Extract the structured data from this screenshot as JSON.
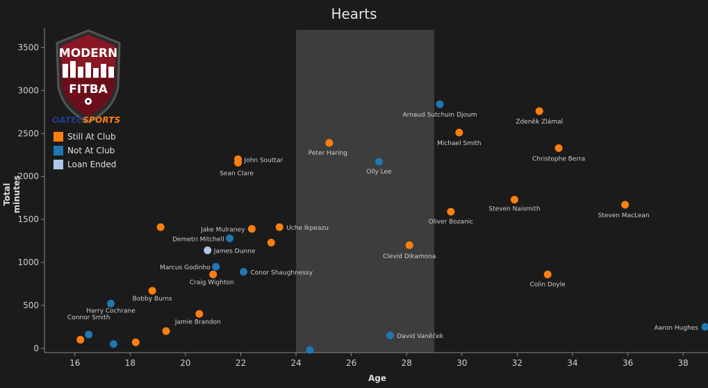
{
  "chart_data": {
    "type": "scatter",
    "title": "Hearts",
    "xlabel": "Age",
    "ylabel": "Total minutes",
    "xlim": [
      14.9,
      38.9
    ],
    "ylim": [
      -50,
      3730
    ],
    "xticks": [
      16,
      18,
      20,
      22,
      24,
      26,
      28,
      30,
      32,
      34,
      36,
      38
    ],
    "yticks": [
      0,
      500,
      1000,
      1500,
      2000,
      2500,
      3000,
      3500
    ],
    "highlight_band": [
      24,
      29
    ],
    "grid": false,
    "legend_position": "top-left",
    "legend": [
      {
        "label": "Still At Club",
        "color": "#ff7f0e"
      },
      {
        "label": "Not At Club",
        "color": "#1f77b4"
      },
      {
        "label": "Loan Ended",
        "color": "#aec7e8"
      }
    ],
    "points": [
      {
        "name": "",
        "age": 16.2,
        "minutes": 100,
        "status": "still"
      },
      {
        "name": "Connor Smith",
        "age": 16.5,
        "minutes": 160,
        "status": "not"
      },
      {
        "name": "Harry Cochrane",
        "age": 17.3,
        "minutes": 520,
        "status": "not"
      },
      {
        "name": "",
        "age": 17.4,
        "minutes": 50,
        "status": "not"
      },
      {
        "name": "",
        "age": 18.2,
        "minutes": 70,
        "status": "still"
      },
      {
        "name": "Bobby Burns",
        "age": 18.8,
        "minutes": 670,
        "status": "still"
      },
      {
        "name": "",
        "age": 19.1,
        "minutes": 1410,
        "status": "still"
      },
      {
        "name": "",
        "age": 19.3,
        "minutes": 200,
        "status": "still"
      },
      {
        "name": "Jamie Brandon",
        "age": 20.5,
        "minutes": 400,
        "status": "still"
      },
      {
        "name": "Craig Wighton",
        "age": 21.0,
        "minutes": 860,
        "status": "still"
      },
      {
        "name": "Marcus Godinho",
        "age": 21.1,
        "minutes": 950,
        "status": "not"
      },
      {
        "name": "James Dunne",
        "age": 20.8,
        "minutes": 1140,
        "status": "loan"
      },
      {
        "name": "Demetri Mitchell",
        "age": 21.6,
        "minutes": 1280,
        "status": "not"
      },
      {
        "name": "John Souttar",
        "age": 21.9,
        "minutes": 2200,
        "status": "still"
      },
      {
        "name": "Sean Clare",
        "age": 21.9,
        "minutes": 2160,
        "status": "still"
      },
      {
        "name": "Conor Shaughnessy",
        "age": 22.1,
        "minutes": 890,
        "status": "not"
      },
      {
        "name": "Jake Mulraney",
        "age": 22.4,
        "minutes": 1390,
        "status": "still"
      },
      {
        "name": "",
        "age": 23.1,
        "minutes": 1230,
        "status": "still"
      },
      {
        "name": "Uche Ikpeazu",
        "age": 23.4,
        "minutes": 1410,
        "status": "still"
      },
      {
        "name": "",
        "age": 24.5,
        "minutes": -20,
        "status": "not"
      },
      {
        "name": "Peter Haring",
        "age": 25.2,
        "minutes": 2390,
        "status": "still"
      },
      {
        "name": "Olly Lee",
        "age": 27.0,
        "minutes": 2170,
        "status": "not"
      },
      {
        "name": "David Vaněček",
        "age": 27.4,
        "minutes": 150,
        "status": "not"
      },
      {
        "name": "Clevid Dikamona",
        "age": 28.1,
        "minutes": 1200,
        "status": "still"
      },
      {
        "name": "Arnaud Sutchuin Djoum",
        "age": 29.2,
        "minutes": 2840,
        "status": "not"
      },
      {
        "name": "Oliver Bozanic",
        "age": 29.6,
        "minutes": 1590,
        "status": "still"
      },
      {
        "name": "Michael Smith",
        "age": 29.9,
        "minutes": 2510,
        "status": "still"
      },
      {
        "name": "Steven Naismith",
        "age": 31.9,
        "minutes": 1730,
        "status": "still"
      },
      {
        "name": "Zdeněk Zlámal",
        "age": 32.8,
        "minutes": 2760,
        "status": "still"
      },
      {
        "name": "Colin Doyle",
        "age": 33.1,
        "minutes": 860,
        "status": "still"
      },
      {
        "name": "Christophe Berra",
        "age": 33.5,
        "minutes": 2330,
        "status": "still"
      },
      {
        "name": "Steven MacLean",
        "age": 35.9,
        "minutes": 1670,
        "status": "still"
      },
      {
        "name": "Aaron Hughes",
        "age": 38.8,
        "minutes": 250,
        "status": "not"
      }
    ]
  },
  "logo": {
    "line1": "MODERN",
    "line2": "FITBA"
  },
  "brand": {
    "part1": "OATEC",
    "part2": "SPORTS"
  },
  "colors": {
    "still": "#ff7f0e",
    "not": "#1f77b4",
    "loan": "#aec7e8",
    "band": "#3d3d3d",
    "background": "#1b1b1b"
  }
}
